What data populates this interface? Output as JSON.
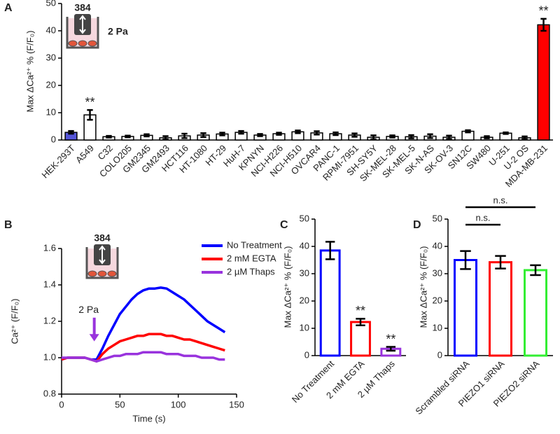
{
  "chart_data": [
    {
      "type": "bar",
      "label": "A",
      "ylabel": "Max ΔCa²⁺ % (F/F₀)",
      "inset_label": "384",
      "stimulus": "2 Pa",
      "categories": [
        "HEK-293T",
        "A549",
        "C32",
        "COLO205",
        "GM2345",
        "GM2493",
        "HCT116",
        "HT-1080",
        "HT-29",
        "HuH-7",
        "KPNYN",
        "NCI-H226",
        "NCI-H510",
        "OVCAR4",
        "PANC-1",
        "RPMI-7951",
        "SH-SY5Y",
        "SK-MEL-28",
        "SK-MEL-5",
        "SK-N-AS",
        "SK-OV-3",
        "SN12C",
        "SW480",
        "U-251",
        "U-2 OS",
        "MDA-MB-231"
      ],
      "values": [
        2.8,
        9.2,
        1.2,
        1.3,
        1.7,
        0.8,
        1.5,
        1.8,
        2.2,
        2.8,
        1.8,
        2.3,
        3.0,
        2.6,
        2.3,
        1.8,
        1.0,
        1.3,
        1.2,
        1.4,
        1.0,
        3.2,
        1.0,
        2.5,
        0.8,
        42.2
      ],
      "errors": [
        0.5,
        1.8,
        0.3,
        0.3,
        0.4,
        0.6,
        0.8,
        0.7,
        0.5,
        0.5,
        0.4,
        0.4,
        0.5,
        0.6,
        0.5,
        0.6,
        0.7,
        0.4,
        0.6,
        0.7,
        0.6,
        0.4,
        0.4,
        0.3,
        0.5,
        2.2
      ],
      "colors": [
        "#5555d8",
        "#ffffff",
        "#ffffff",
        "#ffffff",
        "#ffffff",
        "#ffffff",
        "#ffffff",
        "#ffffff",
        "#ffffff",
        "#ffffff",
        "#ffffff",
        "#ffffff",
        "#ffffff",
        "#ffffff",
        "#ffffff",
        "#ffffff",
        "#ffffff",
        "#ffffff",
        "#ffffff",
        "#ffffff",
        "#ffffff",
        "#ffffff",
        "#ffffff",
        "#ffffff",
        "#ffffff",
        "#ff0000"
      ],
      "style": "filled",
      "significance": [
        null,
        "**",
        null,
        null,
        null,
        null,
        null,
        null,
        null,
        null,
        null,
        null,
        null,
        null,
        null,
        null,
        null,
        null,
        null,
        null,
        null,
        null,
        null,
        null,
        null,
        "**"
      ],
      "ylim": [
        0,
        50
      ],
      "yticks": [
        0,
        10,
        20,
        30,
        40,
        50
      ]
    },
    {
      "type": "line",
      "label": "B",
      "ylabel": "Ca²⁺ (F/F₀)",
      "xlabel": "Time (s)",
      "inset_label": "384",
      "annotation": {
        "text": "2 Pa",
        "x": 28
      },
      "x": [
        0,
        5,
        10,
        15,
        20,
        25,
        30,
        35,
        40,
        45,
        50,
        55,
        60,
        65,
        70,
        75,
        80,
        85,
        90,
        95,
        100,
        105,
        110,
        115,
        120,
        125,
        130,
        135,
        140
      ],
      "series": [
        {
          "name": "No Treatment",
          "color": "#0000ff",
          "values": [
            0.99,
            1.0,
            1.0,
            1.0,
            1.0,
            0.99,
            0.99,
            1.05,
            1.12,
            1.18,
            1.24,
            1.28,
            1.32,
            1.35,
            1.37,
            1.38,
            1.38,
            1.385,
            1.38,
            1.36,
            1.34,
            1.32,
            1.29,
            1.26,
            1.23,
            1.2,
            1.18,
            1.16,
            1.14
          ]
        },
        {
          "name": "2 mM EGTA",
          "color": "#ff0000",
          "values": [
            0.99,
            1.0,
            1.0,
            1.0,
            1.0,
            0.99,
            0.98,
            1.02,
            1.05,
            1.07,
            1.09,
            1.1,
            1.11,
            1.12,
            1.12,
            1.13,
            1.13,
            1.13,
            1.12,
            1.12,
            1.11,
            1.1,
            1.1,
            1.09,
            1.08,
            1.07,
            1.06,
            1.05,
            1.04
          ]
        },
        {
          "name": "2 µM Thaps",
          "color": "#9933dd",
          "values": [
            1.0,
            1.0,
            1.0,
            1.0,
            1.0,
            0.99,
            0.98,
            0.99,
            1.0,
            1.01,
            1.01,
            1.02,
            1.02,
            1.02,
            1.03,
            1.03,
            1.03,
            1.03,
            1.02,
            1.02,
            1.02,
            1.01,
            1.01,
            1.01,
            1.0,
            1.0,
            1.0,
            0.99,
            0.99
          ]
        }
      ],
      "legend": "top-right",
      "xlim": [
        0,
        150
      ],
      "xticks": [
        0,
        50,
        100,
        150
      ],
      "ylim": [
        0.8,
        1.6
      ],
      "yticks": [
        0.8,
        {
          "value": 1,
          "label": "1.0"
        },
        1.2,
        1.4,
        1.6
      ]
    },
    {
      "type": "bar",
      "label": "C",
      "ylabel": "Max ΔCa²⁺ % (F/F₀)",
      "categories": [
        "No Treatment",
        "2 mM EGTA",
        "2 µM Thaps"
      ],
      "values": [
        38.5,
        12.3,
        2.5
      ],
      "errors": [
        3.2,
        1.2,
        0.7
      ],
      "colors": [
        "#0000ff",
        "#ff0000",
        "#9933dd"
      ],
      "style": "outline",
      "significance": [
        null,
        "**",
        "**"
      ],
      "ylim": [
        0,
        50
      ],
      "yticks": [
        0,
        10,
        20,
        30,
        40,
        50
      ]
    },
    {
      "type": "bar",
      "label": "D",
      "ylabel": "Max ΔCa²⁺ % (F/F₀)",
      "categories": [
        "Scrambled siRNA",
        "PIEZO1 siRNA",
        "PIEZO2 siRNA"
      ],
      "values": [
        35.0,
        34.2,
        31.3
      ],
      "errors": [
        3.3,
        2.3,
        1.8
      ],
      "colors": [
        "#0000ff",
        "#ff0000",
        "#33ee33"
      ],
      "style": "outline",
      "comparisons": [
        {
          "label": "n.s.",
          "between": [
            "Scrambled siRNA",
            "PIEZO1 siRNA"
          ]
        },
        {
          "label": "n.s.",
          "between": [
            "Scrambled siRNA",
            "PIEZO2 siRNA"
          ]
        }
      ],
      "ylim": [
        0,
        50
      ],
      "yticks": [
        0,
        10,
        20,
        30,
        40,
        50
      ]
    }
  ]
}
